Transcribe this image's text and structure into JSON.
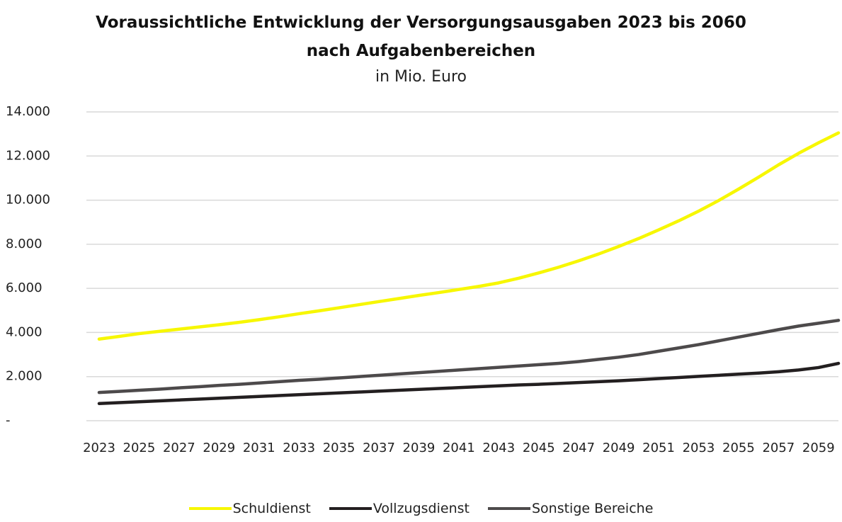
{
  "chart_data": {
    "type": "line",
    "title": "Voraussichtliche Entwicklung der Versorgungsausgaben 2023 bis 2060 nach Aufgabenbereichen",
    "subtitle": "in Mio. Euro",
    "categories": [
      "2023",
      null,
      "2025",
      null,
      "2027",
      null,
      "2029",
      null,
      "2031",
      null,
      "2033",
      null,
      "2035",
      null,
      "2037",
      null,
      "2039",
      null,
      "2041",
      null,
      "2043",
      null,
      "2045",
      null,
      "2047",
      null,
      "2049",
      null,
      "2051",
      null,
      "2053",
      null,
      "2055",
      null,
      "2057",
      null,
      "2059",
      null
    ],
    "series": [
      {
        "name": "Schuldienst",
        "color": "#f7f700",
        "values": [
          3700,
          3820,
          3950,
          4050,
          4150,
          4250,
          4350,
          4460,
          4580,
          4710,
          4850,
          4980,
          5120,
          5260,
          5400,
          5540,
          5680,
          5810,
          5950,
          6090,
          6250,
          6460,
          6700,
          6960,
          7250,
          7560,
          7900,
          8260,
          8650,
          9060,
          9500,
          9980,
          10500,
          11040,
          11600,
          12120,
          12600,
          13050
        ]
      },
      {
        "name": "Vollzugsdienst",
        "color": "#231f20",
        "values": [
          780,
          820,
          860,
          900,
          940,
          980,
          1020,
          1060,
          1100,
          1140,
          1180,
          1220,
          1260,
          1300,
          1340,
          1380,
          1420,
          1460,
          1500,
          1540,
          1580,
          1620,
          1650,
          1690,
          1730,
          1770,
          1810,
          1860,
          1910,
          1960,
          2010,
          2060,
          2110,
          2160,
          2220,
          2300,
          2410,
          2600
        ]
      },
      {
        "name": "Sonstige Bereiche",
        "color": "#4d4a4b",
        "values": [
          1280,
          1330,
          1380,
          1430,
          1490,
          1540,
          1600,
          1650,
          1710,
          1770,
          1830,
          1880,
          1940,
          2000,
          2060,
          2120,
          2180,
          2240,
          2300,
          2360,
          2420,
          2480,
          2540,
          2600,
          2680,
          2780,
          2880,
          3000,
          3150,
          3300,
          3450,
          3620,
          3790,
          3960,
          4130,
          4290,
          4420,
          4550
        ]
      }
    ],
    "ylim": [
      0,
      14000
    ],
    "yticks": [
      {
        "value": 0,
        "label": "-"
      },
      {
        "value": 2000,
        "label": "2.000"
      },
      {
        "value": 4000,
        "label": "4.000"
      },
      {
        "value": 6000,
        "label": "6.000"
      },
      {
        "value": 8000,
        "label": "8.000"
      },
      {
        "value": 10000,
        "label": "10.000"
      },
      {
        "value": 12000,
        "label": "12.000"
      },
      {
        "value": 14000,
        "label": "14.000"
      }
    ],
    "grid": true,
    "legend": "bottom"
  }
}
